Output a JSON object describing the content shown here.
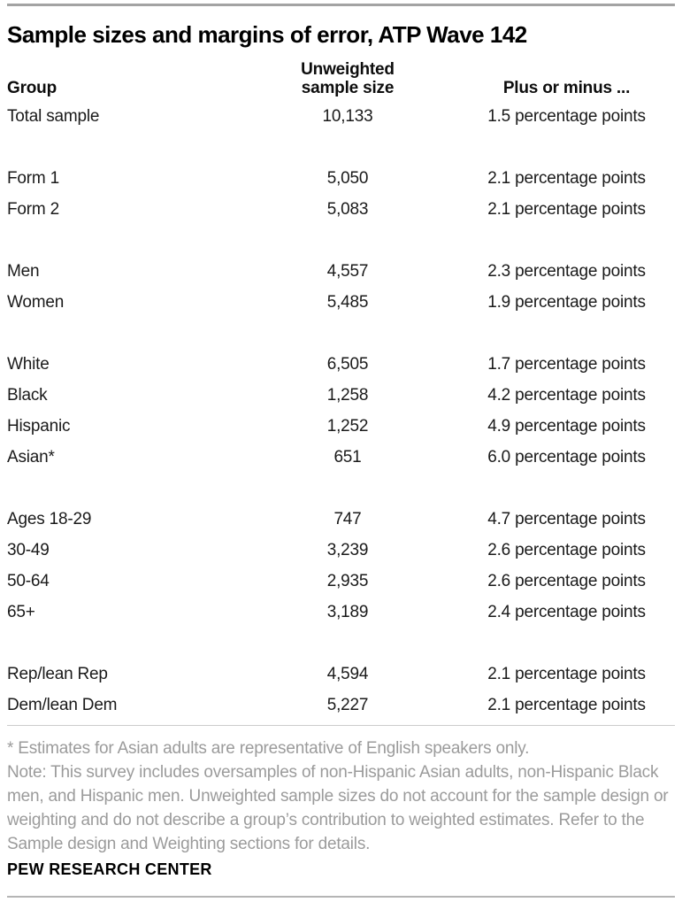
{
  "title": "Sample sizes and margins of error, ATP Wave 142",
  "chart_data": {
    "type": "table",
    "title": "Sample sizes and margins of error, ATP Wave 142",
    "columns": [
      "Group",
      "Unweighted sample size",
      "Plus or minus ..."
    ],
    "header": {
      "group": "Group",
      "n_line1": "Unweighted",
      "n_line2": "sample size",
      "moe": "Plus or minus ..."
    },
    "rows": [
      {
        "group": "Total sample",
        "n": "10,133",
        "moe": "1.5 percentage points"
      },
      {
        "group": "Form 1",
        "n": "5,050",
        "moe": "2.1 percentage points"
      },
      {
        "group": "Form 2",
        "n": "5,083",
        "moe": "2.1 percentage points"
      },
      {
        "group": "Men",
        "n": "4,557",
        "moe": "2.3 percentage points"
      },
      {
        "group": "Women",
        "n": "5,485",
        "moe": "1.9 percentage points"
      },
      {
        "group": "White",
        "n": "6,505",
        "moe": "1.7 percentage points"
      },
      {
        "group": "Black",
        "n": "1,258",
        "moe": "4.2 percentage points"
      },
      {
        "group": "Hispanic",
        "n": "1,252",
        "moe": "4.9 percentage points"
      },
      {
        "group": "Asian*",
        "n": "651",
        "moe": "6.0 percentage points"
      },
      {
        "group": "Ages 18-29",
        "n": "747",
        "moe": "4.7 percentage points"
      },
      {
        "group": "30-49",
        "n": "3,239",
        "moe": "2.6 percentage points"
      },
      {
        "group": "50-64",
        "n": "2,935",
        "moe": "2.6 percentage points"
      },
      {
        "group": "65+",
        "n": "3,189",
        "moe": "2.4 percentage points"
      },
      {
        "group": "Rep/lean Rep",
        "n": "4,594",
        "moe": "2.1 percentage points"
      },
      {
        "group": "Dem/lean Dem",
        "n": "5,227",
        "moe": "2.1 percentage points"
      }
    ]
  },
  "notes": {
    "asterisk_line": "* Estimates for Asian adults are representative of English speakers only.",
    "lines": [
      "Note: This survey includes oversamples of non-Hispanic Asian adults, non-Hispanic Black",
      "men, and Hispanic men. Unweighted sample sizes do not account for the sample design or",
      "weighting and do not describe a group’s contribution to weighted estimates. Refer to the",
      "Sample design and Weighting sections for details."
    ]
  },
  "footer": {
    "brand": "PEW RESEARCH CENTER"
  }
}
